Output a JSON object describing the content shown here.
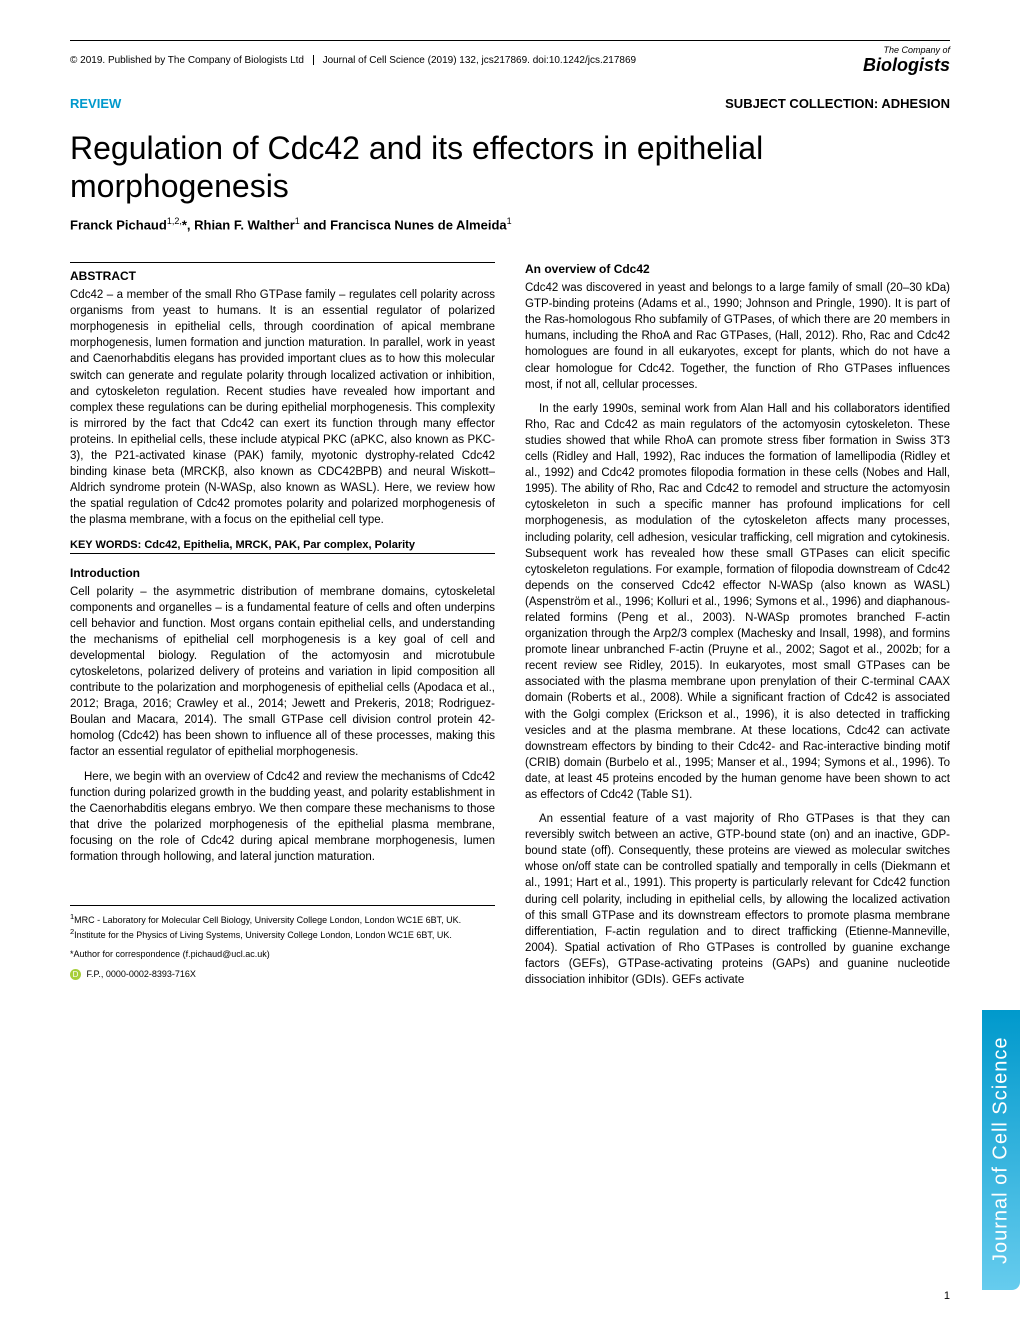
{
  "header": {
    "copyright": "© 2019. Published by The Company of Biologists Ltd",
    "journal_citation": "Journal of Cell Science (2019) 132, jcs217869. doi:10.1242/jcs.217869",
    "logo_prefix": "The Company of",
    "logo_main": "Biologists"
  },
  "article_type": {
    "review": "REVIEW",
    "subject": "SUBJECT COLLECTION: ADHESION"
  },
  "title": "Regulation of Cdc42 and its effectors in epithelial morphogenesis",
  "authors": "Franck Pichaud1,2,*, Rhian F. Walther1 and Francisca Nunes de Almeida1",
  "sections": {
    "abstract_heading": "ABSTRACT",
    "abstract_text": "Cdc42 – a member of the small Rho GTPase family – regulates cell polarity across organisms from yeast to humans. It is an essential regulator of polarized morphogenesis in epithelial cells, through coordination of apical membrane morphogenesis, lumen formation and junction maturation. In parallel, work in yeast and Caenorhabditis elegans has provided important clues as to how this molecular switch can generate and regulate polarity through localized activation or inhibition, and cytoskeleton regulation. Recent studies have revealed how important and complex these regulations can be during epithelial morphogenesis. This complexity is mirrored by the fact that Cdc42 can exert its function through many effector proteins. In epithelial cells, these include atypical PKC (aPKC, also known as PKC-3), the P21-activated kinase (PAK) family, myotonic dystrophy-related Cdc42 binding kinase beta (MRCKβ, also known as CDC42BPB) and neural Wiskott–Aldrich syndrome protein (N-WASp, also known as WASL). Here, we review how the spatial regulation of Cdc42 promotes polarity and polarized morphogenesis of the plasma membrane, with a focus on the epithelial cell type.",
    "keywords": "KEY WORDS: Cdc42, Epithelia, MRCK, PAK, Par complex, Polarity",
    "intro_heading": "Introduction",
    "intro_p1": "Cell polarity – the asymmetric distribution of membrane domains, cytoskeletal components and organelles – is a fundamental feature of cells and often underpins cell behavior and function. Most organs contain epithelial cells, and understanding the mechanisms of epithelial cell morphogenesis is a key goal of cell and developmental biology. Regulation of the actomyosin and microtubule cytoskeletons, polarized delivery of proteins and variation in lipid composition all contribute to the polarization and morphogenesis of epithelial cells (Apodaca et al., 2012; Braga, 2016; Crawley et al., 2014; Jewett and Prekeris, 2018; Rodriguez-Boulan and Macara, 2014). The small GTPase cell division control protein 42-homolog (Cdc42) has been shown to influence all of these processes, making this factor an essential regulator of epithelial morphogenesis.",
    "intro_p2": "Here, we begin with an overview of Cdc42 and review the mechanisms of Cdc42 function during polarized growth in the budding yeast, and polarity establishment in the Caenorhabditis elegans embryo. We then compare these mechanisms to those that drive the polarized morphogenesis of the epithelial plasma membrane, focusing on the role of Cdc42 during apical membrane morphogenesis, lumen formation through hollowing, and lateral junction maturation.",
    "overview_heading": "An overview of Cdc42",
    "overview_p1": "Cdc42 was discovered in yeast and belongs to a large family of small (20–30 kDa) GTP-binding proteins (Adams et al., 1990; Johnson and Pringle, 1990). It is part of the Ras-homologous Rho subfamily of GTPases, of which there are 20 members in humans, including the RhoA and Rac GTPases, (Hall, 2012). Rho, Rac and Cdc42 homologues are found in all eukaryotes, except for plants, which do not have a clear homologue for Cdc42. Together, the function of Rho GTPases influences most, if not all, cellular processes.",
    "overview_p2": "In the early 1990s, seminal work from Alan Hall and his collaborators identified Rho, Rac and Cdc42 as main regulators of the actomyosin cytoskeleton. These studies showed that while RhoA can promote stress fiber formation in Swiss 3T3 cells (Ridley and Hall, 1992), Rac induces the formation of lamellipodia (Ridley et al., 1992) and Cdc42 promotes filopodia formation in these cells (Nobes and Hall, 1995). The ability of Rho, Rac and Cdc42 to remodel and structure the actomyosin cytoskeleton in such a specific manner has profound implications for cell morphogenesis, as modulation of the cytoskeleton affects many processes, including polarity, cell adhesion, vesicular trafficking, cell migration and cytokinesis. Subsequent work has revealed how these small GTPases can elicit specific cytoskeleton regulations. For example, formation of filopodia downstream of Cdc42 depends on the conserved Cdc42 effector N-WASp (also known as WASL) (Aspenström et al., 1996; Kolluri et al., 1996; Symons et al., 1996) and diaphanous-related formins (Peng et al., 2003). N-WASp promotes branched F-actin organization through the Arp2/3 complex (Machesky and Insall, 1998), and formins promote linear unbranched F-actin (Pruyne et al., 2002; Sagot et al., 2002b; for a recent review see Ridley, 2015). In eukaryotes, most small GTPases can be associated with the plasma membrane upon prenylation of their C-terminal CAAX domain (Roberts et al., 2008). While a significant fraction of Cdc42 is associated with the Golgi complex (Erickson et al., 1996), it is also detected in trafficking vesicles and at the plasma membrane. At these locations, Cdc42 can activate downstream effectors by binding to their Cdc42- and Rac-interactive binding motif (CRIB) domain (Burbelo et al., 1995; Manser et al., 1994; Symons et al., 1996). To date, at least 45 proteins encoded by the human genome have been shown to act as effectors of Cdc42 (Table S1).",
    "overview_p3": "An essential feature of a vast majority of Rho GTPases is that they can reversibly switch between an active, GTP-bound state (on) and an inactive, GDP-bound state (off). Consequently, these proteins are viewed as molecular switches whose on/off state can be controlled spatially and temporally in cells (Diekmann et al., 1991; Hart et al., 1991). This property is particularly relevant for Cdc42 function during cell polarity, including in epithelial cells, by allowing the localized activation of this small GTPase and its downstream effectors to promote plasma membrane differentiation, F-actin regulation and to direct trafficking (Etienne-Manneville, 2004). Spatial activation of Rho GTPases is controlled by guanine exchange factors (GEFs), GTPase-activating proteins (GAPs) and guanine nucleotide dissociation inhibitor (GDIs). GEFs activate"
  },
  "affiliations": {
    "text": "1MRC - Laboratory for Molecular Cell Biology, University College London, London WC1E 6BT, UK. 2Institute for the Physics of Living Systems, University College London, London WC1E 6BT, UK.",
    "correspondence": "*Author for correspondence (f.pichaud@ucl.ac.uk)",
    "orcid": "F.P., 0000-0002-8393-716X"
  },
  "side_tab": "Journal of Cell Science",
  "page_number": "1",
  "colors": {
    "accent": "#0099cc",
    "tab_gradient_start": "#66ccee",
    "tab_gradient_end": "#0099cc",
    "orcid_green": "#a6ce39"
  }
}
